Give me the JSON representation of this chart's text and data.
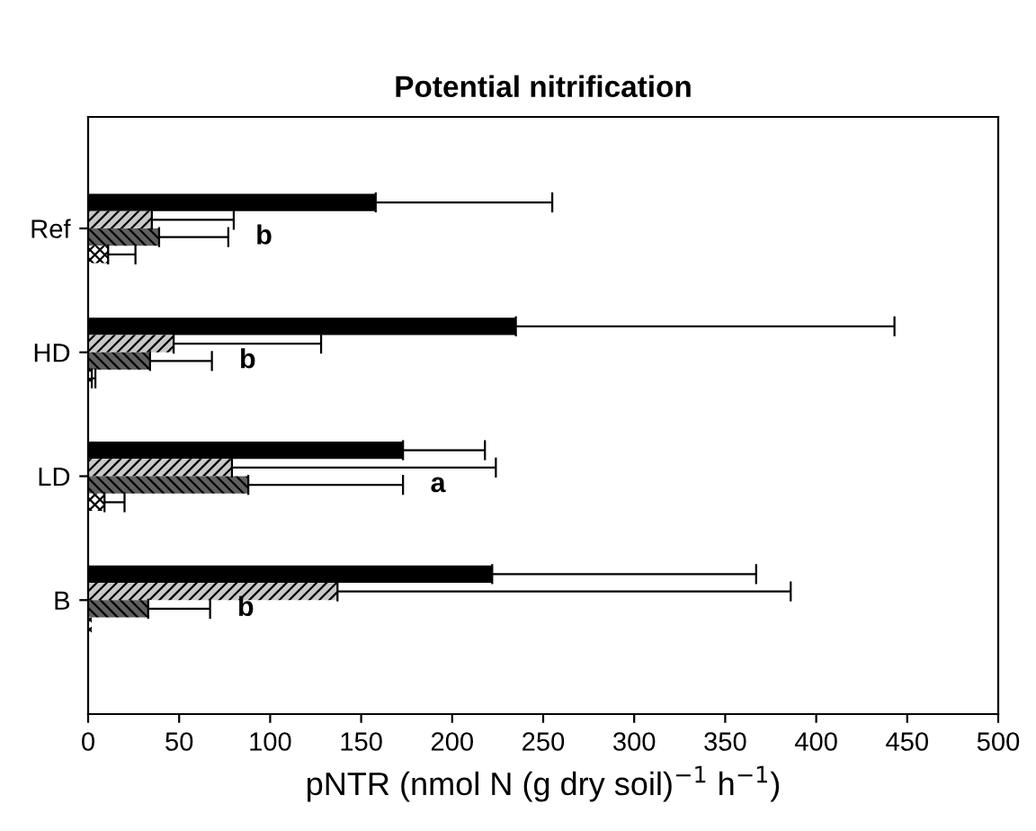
{
  "chart_data": {
    "type": "bar",
    "orientation": "horizontal",
    "title": "Potential nitrification",
    "xlabel": "pNTR (nmol N (g dry soil)$^{−1}$ h$^{−1}$)",
    "categories": [
      "Ref",
      "HD",
      "LD",
      "B"
    ],
    "series": [
      {
        "color": "#000000",
        "values": [
          158,
          235,
          173,
          222
        ],
        "errors": [
          [
            158,
            255
          ],
          [
            235,
            443
          ],
          [
            173,
            218
          ],
          [
            222,
            367
          ]
        ]
      },
      {
        "color": "#c8c8c8",
        "values": [
          35,
          47,
          79,
          137
        ],
        "errors": [
          [
            35,
            80
          ],
          [
            47,
            128
          ],
          [
            79,
            224
          ],
          [
            137,
            386
          ]
        ]
      },
      {
        "color": "#606060",
        "values": [
          39,
          34,
          88,
          33
        ],
        "errors": [
          [
            39,
            77
          ],
          [
            34,
            68
          ],
          [
            88,
            173
          ],
          [
            33,
            67
          ]
        ]
      },
      {
        "color": "#ffffff",
        "values": [
          11,
          2,
          9,
          2
        ],
        "errors": [
          [
            11,
            26
          ],
          [
            2,
            4
          ],
          [
            9,
            20
          ],
          null
        ]
      }
    ],
    "annotations": [
      "b",
      "b",
      "a",
      "b"
    ],
    "xlim": [
      0,
      500
    ],
    "xticks": [
      0,
      50,
      100,
      150,
      200,
      250,
      300,
      350,
      400,
      450,
      500
    ],
    "grid": false,
    "legend": false
  }
}
